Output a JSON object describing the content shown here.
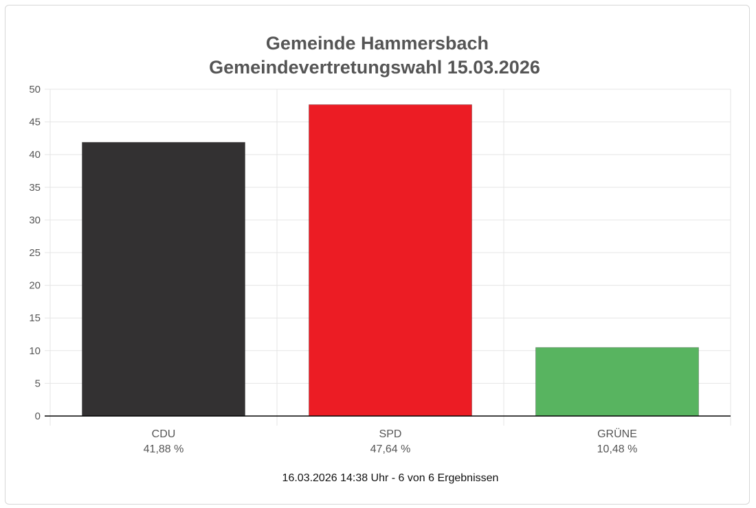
{
  "chart_data": {
    "type": "bar",
    "title": [
      "Gemeinde Hammersbach",
      "Gemeindevertretungswahl 15.03.2026"
    ],
    "categories": [
      "CDU",
      "SPD",
      "GRÜNE"
    ],
    "value_labels": [
      "41,88 %",
      "47,64 %",
      "10,48 %"
    ],
    "values": [
      41.88,
      47.64,
      10.48
    ],
    "colors": [
      "#333132",
      "#ec1c24",
      "#58b460"
    ],
    "ylim": [
      0,
      50
    ],
    "yticks": [
      0,
      5,
      10,
      15,
      20,
      25,
      30,
      35,
      40,
      45,
      50
    ],
    "grid": true,
    "legend": "none"
  },
  "footer": "16.03.2026 14:38 Uhr - 6 von 6 Ergebnissen"
}
